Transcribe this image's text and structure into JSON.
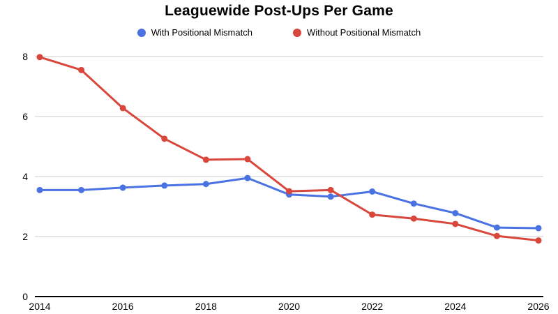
{
  "title": "Leaguewide Post-Ups Per Game",
  "chart_data": {
    "type": "line",
    "title": "Leaguewide Post-Ups Per Game",
    "xlabel": "",
    "ylabel": "",
    "x": [
      2014,
      2015,
      2016,
      2017,
      2018,
      2019,
      2020,
      2021,
      2022,
      2023,
      2024,
      2025,
      2026
    ],
    "series": [
      {
        "name": "With Positional Mismatch",
        "color": "#4b72e2",
        "values": [
          3.55,
          3.55,
          3.63,
          3.7,
          3.75,
          3.95,
          3.4,
          3.33,
          3.5,
          3.1,
          2.78,
          2.3,
          2.28
        ]
      },
      {
        "name": "Without Positional Mismatch",
        "color": "#d9463c",
        "values": [
          7.98,
          7.55,
          6.28,
          5.26,
          4.56,
          4.58,
          3.51,
          3.55,
          2.73,
          2.6,
          2.42,
          2.02,
          1.87
        ]
      }
    ],
    "xlim": [
      2014,
      2026
    ],
    "ylim": [
      0,
      8
    ],
    "yticks": [
      0,
      2,
      4,
      6,
      8
    ],
    "xticks": [
      2014,
      2016,
      2018,
      2020,
      2022,
      2024,
      2026
    ],
    "grid": "horizontal",
    "gridline_color": "#cccccc",
    "axis_color": "#000000",
    "legend_position": "top"
  }
}
